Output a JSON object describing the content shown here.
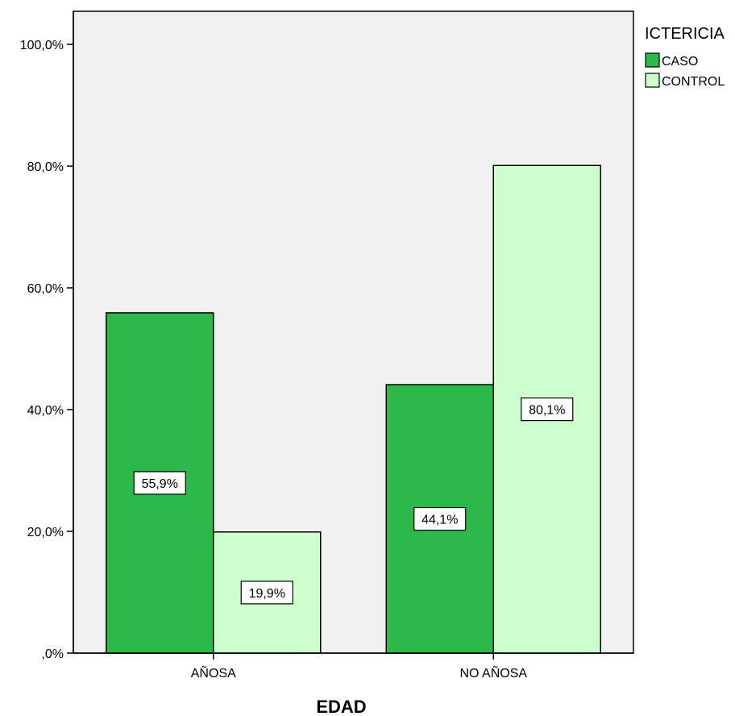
{
  "chart_data": {
    "type": "bar",
    "categories": [
      "AÑOSA",
      "NO AÑOSA"
    ],
    "series": [
      {
        "name": "CASO",
        "values": [
          55.9,
          44.1
        ],
        "labels": [
          "55,9%",
          "44,1%"
        ],
        "color": "#2db84a"
      },
      {
        "name": "CONTROL",
        "values": [
          19.9,
          80.1
        ],
        "labels": [
          "19,9%",
          "80,1%"
        ],
        "color": "#ccffcc"
      }
    ],
    "xlabel": "EDAD",
    "ylabel": "",
    "ylim": [
      0,
      100
    ],
    "yticks": [
      {
        "value": 0,
        "label": ",0%"
      },
      {
        "value": 20,
        "label": "20,0%"
      },
      {
        "value": 40,
        "label": "40,0%"
      },
      {
        "value": 60,
        "label": "60,0%"
      },
      {
        "value": 80,
        "label": "80,0%"
      },
      {
        "value": 100,
        "label": "100,0%"
      }
    ],
    "legend": {
      "title": "ICTERICIA",
      "position": "top-right"
    },
    "plot_background": "#f0f0f0",
    "grid": false
  }
}
